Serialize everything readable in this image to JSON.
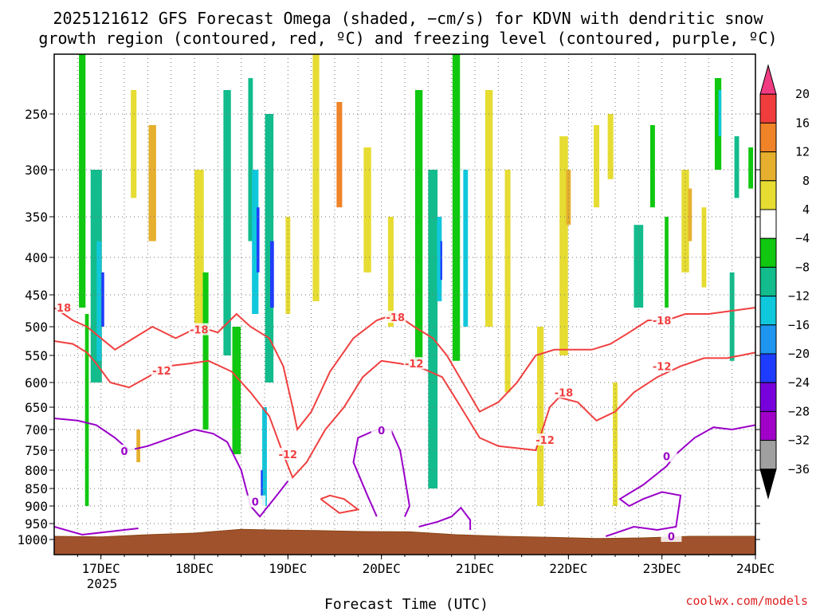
{
  "chart_data": {
    "type": "heatmap",
    "title_lines": [
      "2025121612 GFS Forecast Omega (shaded, −cm/s) for KDVN with dendritic snow",
      "growth region (contoured, red, ºC) and freezing level (contoured, purple, ºC)"
    ],
    "xlabel": "Forecast Time (UTC)",
    "year_label": "2025",
    "credit": "coolwx.com/models",
    "x_ticks": [
      {
        "t": 0.5,
        "label": "17DEC"
      },
      {
        "t": 1.5,
        "label": "18DEC"
      },
      {
        "t": 2.5,
        "label": "19DEC"
      },
      {
        "t": 3.5,
        "label": "20DEC"
      },
      {
        "t": 4.5,
        "label": "21DEC"
      },
      {
        "t": 5.5,
        "label": "22DEC"
      },
      {
        "t": 6.5,
        "label": "23DEC"
      },
      {
        "t": 7.5,
        "label": "24DEC"
      }
    ],
    "x_range_days": [
      0,
      7.5
    ],
    "y_ticks": [
      250,
      300,
      350,
      400,
      450,
      500,
      550,
      600,
      650,
      700,
      750,
      800,
      850,
      900,
      950,
      1000
    ],
    "y_range_hpa": [
      200,
      1020
    ],
    "colorbar": {
      "labels": [
        "20",
        "16",
        "12",
        "8",
        "4",
        "−4",
        "−8",
        "−12",
        "−16",
        "−20",
        "−24",
        "−28",
        "−32",
        "−36"
      ],
      "colors": [
        "#f03c82",
        "#f03c3c",
        "#f08228",
        "#e6af2d",
        "#e6dc32",
        "#ffffff",
        "#0fc80f",
        "#12bc8c",
        "#10c8dc",
        "#1e96f0",
        "#1e3cff",
        "#7800dc",
        "#a000c8",
        "#a0a0a0",
        "#000000"
      ]
    },
    "shading_cells": [
      {
        "t": 0.3,
        "p": 200,
        "p2": 470,
        "w": 0.07,
        "v": -6
      },
      {
        "t": 0.45,
        "p": 300,
        "p2": 600,
        "w": 0.12,
        "v": -8
      },
      {
        "t": 0.48,
        "p": 380,
        "p2": 560,
        "w": 0.05,
        "v": -14
      },
      {
        "t": 0.52,
        "p": 420,
        "p2": 500,
        "w": 0.03,
        "v": -20
      },
      {
        "t": 0.35,
        "p": 480,
        "p2": 900,
        "w": 0.04,
        "v": -6
      },
      {
        "t": 0.85,
        "p": 230,
        "p2": 330,
        "w": 0.06,
        "v": 6
      },
      {
        "t": 1.05,
        "p": 260,
        "p2": 380,
        "w": 0.08,
        "v": 8
      },
      {
        "t": 0.9,
        "p": 700,
        "p2": 780,
        "w": 0.04,
        "v": 10
      },
      {
        "t": 1.55,
        "p": 300,
        "p2": 500,
        "w": 0.1,
        "v": 5
      },
      {
        "t": 1.62,
        "p": 420,
        "p2": 700,
        "w": 0.06,
        "v": -7
      },
      {
        "t": 1.85,
        "p": 230,
        "p2": 550,
        "w": 0.08,
        "v": -8
      },
      {
        "t": 1.95,
        "p": 500,
        "p2": 760,
        "w": 0.09,
        "v": -6
      },
      {
        "t": 2.1,
        "p": 220,
        "p2": 380,
        "w": 0.05,
        "v": -10
      },
      {
        "t": 2.15,
        "p": 300,
        "p2": 480,
        "w": 0.07,
        "v": -12
      },
      {
        "t": 2.18,
        "p": 340,
        "p2": 420,
        "w": 0.03,
        "v": -22
      },
      {
        "t": 2.3,
        "p": 250,
        "p2": 600,
        "w": 0.09,
        "v": -8
      },
      {
        "t": 2.33,
        "p": 380,
        "p2": 470,
        "w": 0.04,
        "v": -20
      },
      {
        "t": 2.25,
        "p": 650,
        "p2": 900,
        "w": 0.05,
        "v": -14
      },
      {
        "t": 2.22,
        "p": 800,
        "p2": 880,
        "w": 0.02,
        "v": -22
      },
      {
        "t": 2.5,
        "p": 350,
        "p2": 480,
        "w": 0.05,
        "v": 6
      },
      {
        "t": 2.8,
        "p": 200,
        "p2": 460,
        "w": 0.07,
        "v": 5
      },
      {
        "t": 3.05,
        "p": 240,
        "p2": 340,
        "w": 0.06,
        "v": 12
      },
      {
        "t": 3.35,
        "p": 280,
        "p2": 420,
        "w": 0.08,
        "v": 5
      },
      {
        "t": 3.6,
        "p": 350,
        "p2": 500,
        "w": 0.06,
        "v": 5
      },
      {
        "t": 3.9,
        "p": 230,
        "p2": 560,
        "w": 0.08,
        "v": -7
      },
      {
        "t": 4.05,
        "p": 300,
        "p2": 850,
        "w": 0.1,
        "v": -8
      },
      {
        "t": 4.12,
        "p": 350,
        "p2": 460,
        "w": 0.05,
        "v": -14
      },
      {
        "t": 4.14,
        "p": 380,
        "p2": 430,
        "w": 0.02,
        "v": -22
      },
      {
        "t": 4.3,
        "p": 200,
        "p2": 560,
        "w": 0.08,
        "v": -7
      },
      {
        "t": 4.4,
        "p": 300,
        "p2": 500,
        "w": 0.05,
        "v": -12
      },
      {
        "t": 4.65,
        "p": 230,
        "p2": 500,
        "w": 0.08,
        "v": 6
      },
      {
        "t": 4.85,
        "p": 300,
        "p2": 620,
        "w": 0.06,
        "v": 5
      },
      {
        "t": 5.2,
        "p": 500,
        "p2": 900,
        "w": 0.07,
        "v": 5
      },
      {
        "t": 5.45,
        "p": 270,
        "p2": 550,
        "w": 0.09,
        "v": 5
      },
      {
        "t": 5.5,
        "p": 300,
        "p2": 360,
        "w": 0.05,
        "v": 10
      },
      {
        "t": 5.8,
        "p": 260,
        "p2": 340,
        "w": 0.06,
        "v": 5
      },
      {
        "t": 5.95,
        "p": 250,
        "p2": 310,
        "w": 0.06,
        "v": 5
      },
      {
        "t": 6.0,
        "p": 600,
        "p2": 900,
        "w": 0.05,
        "v": 6
      },
      {
        "t": 6.25,
        "p": 360,
        "p2": 470,
        "w": 0.1,
        "v": -8
      },
      {
        "t": 6.4,
        "p": 260,
        "p2": 340,
        "w": 0.05,
        "v": -7
      },
      {
        "t": 6.55,
        "p": 350,
        "p2": 470,
        "w": 0.04,
        "v": -7
      },
      {
        "t": 6.75,
        "p": 300,
        "p2": 420,
        "w": 0.08,
        "v": 5
      },
      {
        "t": 6.8,
        "p": 320,
        "p2": 380,
        "w": 0.04,
        "v": 10
      },
      {
        "t": 6.95,
        "p": 340,
        "p2": 440,
        "w": 0.05,
        "v": 5
      },
      {
        "t": 7.1,
        "p": 220,
        "p2": 300,
        "w": 0.07,
        "v": -7
      },
      {
        "t": 7.12,
        "p": 230,
        "p2": 270,
        "w": 0.03,
        "v": -12
      },
      {
        "t": 7.25,
        "p": 420,
        "p2": 560,
        "w": 0.05,
        "v": -8
      },
      {
        "t": 7.3,
        "p": 270,
        "p2": 330,
        "w": 0.05,
        "v": -8
      },
      {
        "t": 7.45,
        "p": 280,
        "p2": 320,
        "w": 0.05,
        "v": -7
      }
    ],
    "red_contours": [
      {
        "label": "-18",
        "points": [
          [
            0.0,
            470
          ],
          [
            0.2,
            490
          ],
          [
            0.35,
            500
          ],
          [
            0.5,
            520
          ],
          [
            0.65,
            540
          ],
          [
            0.85,
            520
          ],
          [
            1.05,
            500
          ],
          [
            1.3,
            520
          ],
          [
            1.55,
            500
          ],
          [
            1.75,
            510
          ],
          [
            1.95,
            480
          ],
          [
            2.1,
            500
          ],
          [
            2.3,
            520
          ],
          [
            2.45,
            570
          ],
          [
            2.55,
            650
          ],
          [
            2.6,
            700
          ],
          [
            2.75,
            660
          ],
          [
            2.95,
            580
          ],
          [
            3.2,
            520
          ],
          [
            3.45,
            490
          ],
          [
            3.65,
            480
          ],
          [
            3.85,
            500
          ],
          [
            4.05,
            520
          ],
          [
            4.2,
            550
          ],
          [
            4.4,
            610
          ],
          [
            4.55,
            660
          ],
          [
            4.75,
            640
          ],
          [
            4.95,
            600
          ],
          [
            5.15,
            550
          ],
          [
            5.35,
            540
          ],
          [
            5.55,
            540
          ],
          [
            5.75,
            540
          ],
          [
            5.95,
            530
          ],
          [
            6.15,
            510
          ],
          [
            6.35,
            490
          ],
          [
            6.55,
            490
          ],
          [
            6.75,
            480
          ],
          [
            7.0,
            480
          ],
          [
            7.25,
            475
          ],
          [
            7.5,
            470
          ]
        ]
      },
      {
        "label": "-12",
        "points": [
          [
            0.0,
            525
          ],
          [
            0.2,
            530
          ],
          [
            0.35,
            545
          ],
          [
            0.45,
            565
          ],
          [
            0.6,
            600
          ],
          [
            0.8,
            610
          ],
          [
            1.0,
            590
          ],
          [
            1.2,
            570
          ],
          [
            1.45,
            565
          ],
          [
            1.65,
            560
          ],
          [
            1.9,
            580
          ],
          [
            2.1,
            620
          ],
          [
            2.3,
            670
          ],
          [
            2.45,
            760
          ],
          [
            2.55,
            820
          ],
          [
            2.7,
            780
          ],
          [
            2.9,
            700
          ],
          [
            3.1,
            650
          ],
          [
            3.3,
            590
          ],
          [
            3.5,
            560
          ],
          [
            3.7,
            565
          ],
          [
            3.95,
            575
          ],
          [
            4.15,
            590
          ],
          [
            4.35,
            650
          ],
          [
            4.55,
            720
          ],
          [
            4.75,
            740
          ],
          [
            4.95,
            745
          ],
          [
            5.15,
            750
          ],
          [
            5.3,
            650
          ],
          [
            5.4,
            630
          ],
          [
            5.6,
            640
          ],
          [
            5.8,
            680
          ],
          [
            6.0,
            660
          ],
          [
            6.2,
            620
          ],
          [
            6.45,
            590
          ],
          [
            6.7,
            570
          ],
          [
            6.95,
            555
          ],
          [
            7.2,
            555
          ],
          [
            7.5,
            545
          ]
        ]
      },
      {
        "label": "",
        "points": [
          [
            2.85,
            880
          ],
          [
            3.05,
            920
          ],
          [
            3.25,
            910
          ],
          [
            3.1,
            880
          ],
          [
            2.95,
            870
          ],
          [
            2.85,
            880
          ]
        ]
      }
    ],
    "red_labels": [
      {
        "t": 0.08,
        "p": 470,
        "text": "-18"
      },
      {
        "t": 1.55,
        "p": 505,
        "text": "-18"
      },
      {
        "t": 3.65,
        "p": 485,
        "text": "-18"
      },
      {
        "t": 5.45,
        "p": 620,
        "text": "-18"
      },
      {
        "t": 6.5,
        "p": 490,
        "text": "-18"
      },
      {
        "t": 1.15,
        "p": 578,
        "text": "-12"
      },
      {
        "t": 2.5,
        "p": 760,
        "text": "-12"
      },
      {
        "t": 3.85,
        "p": 565,
        "text": "-12"
      },
      {
        "t": 5.25,
        "p": 725,
        "text": "-12"
      },
      {
        "t": 6.5,
        "p": 570,
        "text": "-12"
      }
    ],
    "purple_contours": [
      {
        "label": "0",
        "points": [
          [
            0.0,
            675
          ],
          [
            0.25,
            680
          ],
          [
            0.45,
            690
          ],
          [
            0.65,
            720
          ],
          [
            0.8,
            750
          ],
          [
            1.0,
            740
          ],
          [
            1.25,
            720
          ],
          [
            1.5,
            700
          ],
          [
            1.7,
            710
          ],
          [
            1.85,
            730
          ],
          [
            2.0,
            800
          ],
          [
            2.1,
            900
          ],
          [
            2.2,
            930
          ],
          [
            2.35,
            880
          ],
          [
            2.5,
            830
          ]
        ]
      },
      {
        "label": "0",
        "points": [
          [
            3.45,
            930
          ],
          [
            3.35,
            870
          ],
          [
            3.2,
            780
          ],
          [
            3.25,
            720
          ],
          [
            3.45,
            700
          ],
          [
            3.6,
            700
          ],
          [
            3.7,
            750
          ],
          [
            3.75,
            820
          ],
          [
            3.8,
            900
          ],
          [
            3.75,
            930
          ]
        ]
      },
      {
        "label": "",
        "points": [
          [
            3.9,
            960
          ],
          [
            4.1,
            945
          ],
          [
            4.25,
            930
          ],
          [
            4.35,
            905
          ],
          [
            4.45,
            940
          ],
          [
            4.45,
            970
          ]
        ]
      },
      {
        "label": "",
        "points": [
          [
            0.0,
            960
          ],
          [
            0.3,
            985
          ],
          [
            0.6,
            975
          ],
          [
            0.9,
            965
          ]
        ]
      },
      {
        "label": "0",
        "points": [
          [
            5.9,
            990
          ],
          [
            6.2,
            960
          ],
          [
            6.45,
            970
          ],
          [
            6.65,
            960
          ],
          [
            6.7,
            870
          ],
          [
            6.5,
            860
          ],
          [
            6.3,
            880
          ],
          [
            6.15,
            900
          ],
          [
            6.05,
            880
          ],
          [
            6.3,
            840
          ],
          [
            6.55,
            790
          ],
          [
            6.65,
            760
          ],
          [
            6.85,
            720
          ],
          [
            7.05,
            695
          ],
          [
            7.25,
            700
          ],
          [
            7.5,
            690
          ]
        ]
      }
    ],
    "purple_labels": [
      {
        "t": 0.75,
        "p": 752,
        "text": "0"
      },
      {
        "t": 2.15,
        "p": 888,
        "text": "0"
      },
      {
        "t": 3.5,
        "p": 702,
        "text": "0"
      },
      {
        "t": 6.55,
        "p": 765,
        "text": "0"
      },
      {
        "t": 6.6,
        "p": 990,
        "text": "0"
      }
    ],
    "terrain_top": [
      [
        0.0,
        990
      ],
      [
        0.5,
        992
      ],
      [
        1.0,
        985
      ],
      [
        1.5,
        980
      ],
      [
        2.0,
        968
      ],
      [
        2.3,
        970
      ],
      [
        2.8,
        972
      ],
      [
        3.3,
        975
      ],
      [
        3.8,
        976
      ],
      [
        4.3,
        985
      ],
      [
        4.8,
        990
      ],
      [
        5.3,
        993
      ],
      [
        5.8,
        997
      ],
      [
        6.3,
        995
      ],
      [
        6.8,
        990
      ],
      [
        7.5,
        990
      ]
    ]
  }
}
